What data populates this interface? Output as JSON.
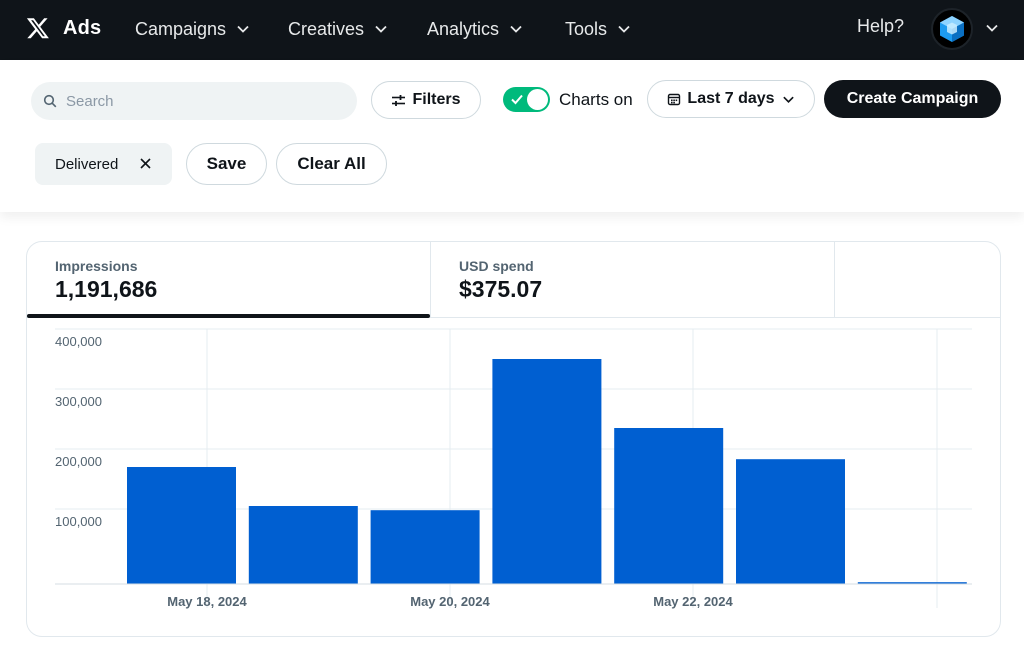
{
  "nav": {
    "brand": "Ads",
    "items": [
      {
        "label": "Campaigns"
      },
      {
        "label": "Creatives"
      },
      {
        "label": "Analytics"
      },
      {
        "label": "Tools"
      }
    ],
    "help": "Help?"
  },
  "toolbar": {
    "search_placeholder": "Search",
    "filters_label": "Filters",
    "charts_toggle_label": "Charts on",
    "charts_toggle_on": true,
    "date_range_label": "Last 7 days",
    "create_label": "Create Campaign",
    "filter_chip": "Delivered",
    "save_label": "Save",
    "clear_label": "Clear All"
  },
  "metrics": [
    {
      "label": "Impressions",
      "value": "1,191,686",
      "selected": true
    },
    {
      "label": "USD spend",
      "value": "$375.07",
      "selected": false
    }
  ],
  "colors": {
    "accent_bar": "#005fd1",
    "toggle_on": "#00ba7c",
    "nav_bg": "#0f1419"
  },
  "chart_data": {
    "type": "bar",
    "series": [
      {
        "values": [
          195000,
          130000,
          123000,
          375000,
          260000,
          208000,
          3000
        ]
      }
    ],
    "x_tick_labels": [
      "May 18, 2024",
      "May 20, 2024",
      "May 22, 2024"
    ],
    "y_tick_labels": [
      "100,000",
      "200,000",
      "300,000",
      "400,000"
    ],
    "y_ticks": [
      100000,
      200000,
      300000,
      400000
    ],
    "ylim": [
      0,
      400000
    ],
    "grid": true
  }
}
